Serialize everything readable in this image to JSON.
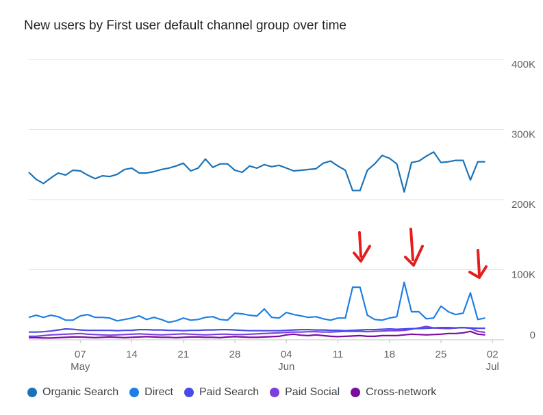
{
  "title": "New users by First user default channel group over time",
  "chart_data": {
    "type": "line",
    "ylim": [
      0,
      400000
    ],
    "yticks": [
      {
        "value": 400000,
        "label": "400K"
      },
      {
        "value": 300000,
        "label": "300K"
      },
      {
        "value": 200000,
        "label": "200K"
      },
      {
        "value": 100000,
        "label": "100K"
      },
      {
        "value": 0,
        "label": "0"
      }
    ],
    "x_start": "2023-04-30",
    "x_end": "2023-07-03",
    "xticks": [
      {
        "date": "2023-05-07",
        "label": "07",
        "sub": "May"
      },
      {
        "date": "2023-05-14",
        "label": "14",
        "sub": ""
      },
      {
        "date": "2023-05-21",
        "label": "21",
        "sub": ""
      },
      {
        "date": "2023-05-28",
        "label": "28",
        "sub": ""
      },
      {
        "date": "2023-06-04",
        "label": "04",
        "sub": "Jun"
      },
      {
        "date": "2023-06-11",
        "label": "11",
        "sub": ""
      },
      {
        "date": "2023-06-18",
        "label": "18",
        "sub": ""
      },
      {
        "date": "2023-06-25",
        "label": "25",
        "sub": ""
      },
      {
        "date": "2023-07-02",
        "label": "02",
        "sub": "Jul"
      }
    ],
    "grid": true,
    "legend_position": "bottom-left",
    "series": [
      {
        "name": "Organic Search",
        "color": "#1a73b8",
        "values": [
          239000,
          229000,
          223000,
          231000,
          238000,
          235000,
          242000,
          241000,
          235000,
          230000,
          234000,
          233000,
          236000,
          243000,
          245000,
          238000,
          238000,
          240000,
          243000,
          245000,
          248000,
          252000,
          241000,
          245000,
          258000,
          246000,
          251000,
          251000,
          242000,
          239000,
          248000,
          245000,
          250000,
          247000,
          249000,
          245000,
          241000,
          242000,
          243000,
          244000,
          252000,
          255000,
          248000,
          242000,
          213000,
          213000,
          242000,
          251000,
          263000,
          259000,
          251000,
          211000,
          253000,
          255000,
          262000,
          268000,
          253000,
          254000,
          256000,
          256000,
          228000,
          254000,
          254000
        ]
      },
      {
        "name": "Direct",
        "color": "#1e7ee6",
        "values": [
          32000,
          35000,
          32000,
          35000,
          33000,
          28000,
          28000,
          34000,
          36000,
          32000,
          32000,
          31000,
          27000,
          29000,
          31000,
          34000,
          29000,
          32000,
          29000,
          25000,
          27000,
          31000,
          28000,
          29000,
          32000,
          33000,
          29000,
          28000,
          38000,
          37000,
          35000,
          34000,
          44000,
          32000,
          31000,
          39000,
          36000,
          34000,
          32000,
          33000,
          30000,
          28000,
          31000,
          31000,
          75000,
          75000,
          35000,
          29000,
          28000,
          31000,
          33000,
          82000,
          40000,
          40000,
          30000,
          31000,
          48000,
          40000,
          36000,
          38000,
          67000,
          29000,
          31000
        ]
      },
      {
        "name": "Paid Search",
        "color": "#4a4ae8",
        "values": [
          11000,
          11000,
          11500,
          12500,
          14000,
          15500,
          15000,
          14000,
          13500,
          13500,
          13500,
          13500,
          13000,
          13500,
          13500,
          14500,
          14500,
          14000,
          14000,
          13500,
          13500,
          13000,
          13500,
          13500,
          14000,
          14000,
          14500,
          14500,
          14000,
          13500,
          13000,
          13000,
          13000,
          13000,
          13000,
          13500,
          14000,
          14500,
          14500,
          14000,
          14000,
          13500,
          13500,
          13000,
          13500,
          14000,
          14500,
          14500,
          15000,
          15500,
          15000,
          15500,
          16000,
          16000,
          16500,
          17000,
          17500,
          17500,
          17000,
          17500,
          17000,
          16500,
          16500
        ]
      },
      {
        "name": "Paid Social",
        "color": "#7b3fe0",
        "values": [
          5000,
          5000,
          6000,
          7000,
          7500,
          8000,
          8500,
          9000,
          8000,
          7500,
          7000,
          6500,
          7000,
          7500,
          8000,
          8500,
          8000,
          7500,
          7000,
          7500,
          8000,
          8500,
          8000,
          7500,
          7000,
          7500,
          8000,
          8000,
          7500,
          7500,
          8000,
          8500,
          9000,
          9500,
          10000,
          10500,
          11000,
          11000,
          11500,
          11500,
          11000,
          11000,
          11500,
          12000,
          12000,
          12000,
          11500,
          12000,
          12500,
          13000,
          13000,
          13500,
          15000,
          17000,
          19000,
          17000,
          16500,
          16000,
          17000,
          17500,
          16500,
          12000,
          10500
        ]
      },
      {
        "name": "Cross-network",
        "color": "#7b0c9e",
        "values": [
          3000,
          3000,
          2500,
          2500,
          3000,
          3500,
          4000,
          4000,
          3500,
          3000,
          3500,
          4000,
          3500,
          3000,
          3500,
          4000,
          4500,
          4000,
          3500,
          3500,
          3000,
          3500,
          4000,
          4000,
          3500,
          3500,
          3000,
          4000,
          4500,
          4000,
          3500,
          3500,
          4000,
          4500,
          5000,
          7000,
          8000,
          6500,
          6000,
          7000,
          6000,
          5000,
          4500,
          5000,
          5500,
          6000,
          5000,
          5000,
          6000,
          6000,
          6000,
          7000,
          8000,
          7500,
          7000,
          7500,
          8000,
          9000,
          9000,
          10000,
          12000,
          8000,
          7000
        ]
      }
    ]
  }
}
